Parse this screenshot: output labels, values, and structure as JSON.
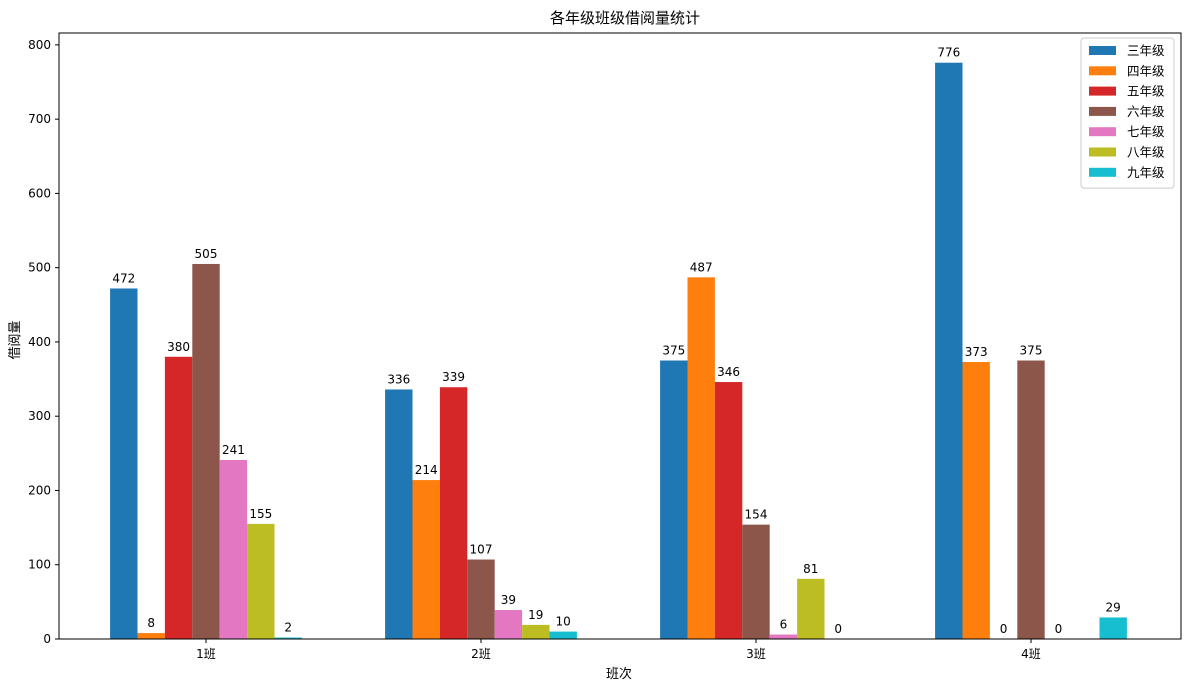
{
  "chart_data": {
    "type": "bar",
    "title": "各年级班级借阅量统计",
    "xlabel": "班次",
    "ylabel": "借阅量",
    "categories": [
      "1班",
      "2班",
      "3班",
      "4班"
    ],
    "ylim": [
      0,
      816
    ],
    "yticks": [
      0,
      100,
      200,
      300,
      400,
      500,
      600,
      700,
      800
    ],
    "grid": false,
    "legend_position": "top-right",
    "series": [
      {
        "name": "三年级",
        "color": "#1f77b4",
        "values": [
          472,
          336,
          375,
          776
        ]
      },
      {
        "name": "四年级",
        "color": "#ff7f0e",
        "values": [
          8,
          214,
          487,
          373
        ]
      },
      {
        "name": "五年级",
        "color": "#d62728",
        "values": [
          380,
          339,
          346,
          0
        ]
      },
      {
        "name": "六年级",
        "color": "#8c564b",
        "values": [
          505,
          107,
          154,
          375
        ]
      },
      {
        "name": "七年级",
        "color": "#e377c2",
        "values": [
          241,
          39,
          6,
          0
        ]
      },
      {
        "name": "八年级",
        "color": "#bcbd22",
        "values": [
          155,
          19,
          81,
          null
        ]
      },
      {
        "name": "九年级",
        "color": "#17becf",
        "values": [
          2,
          10,
          0,
          29
        ]
      }
    ]
  }
}
